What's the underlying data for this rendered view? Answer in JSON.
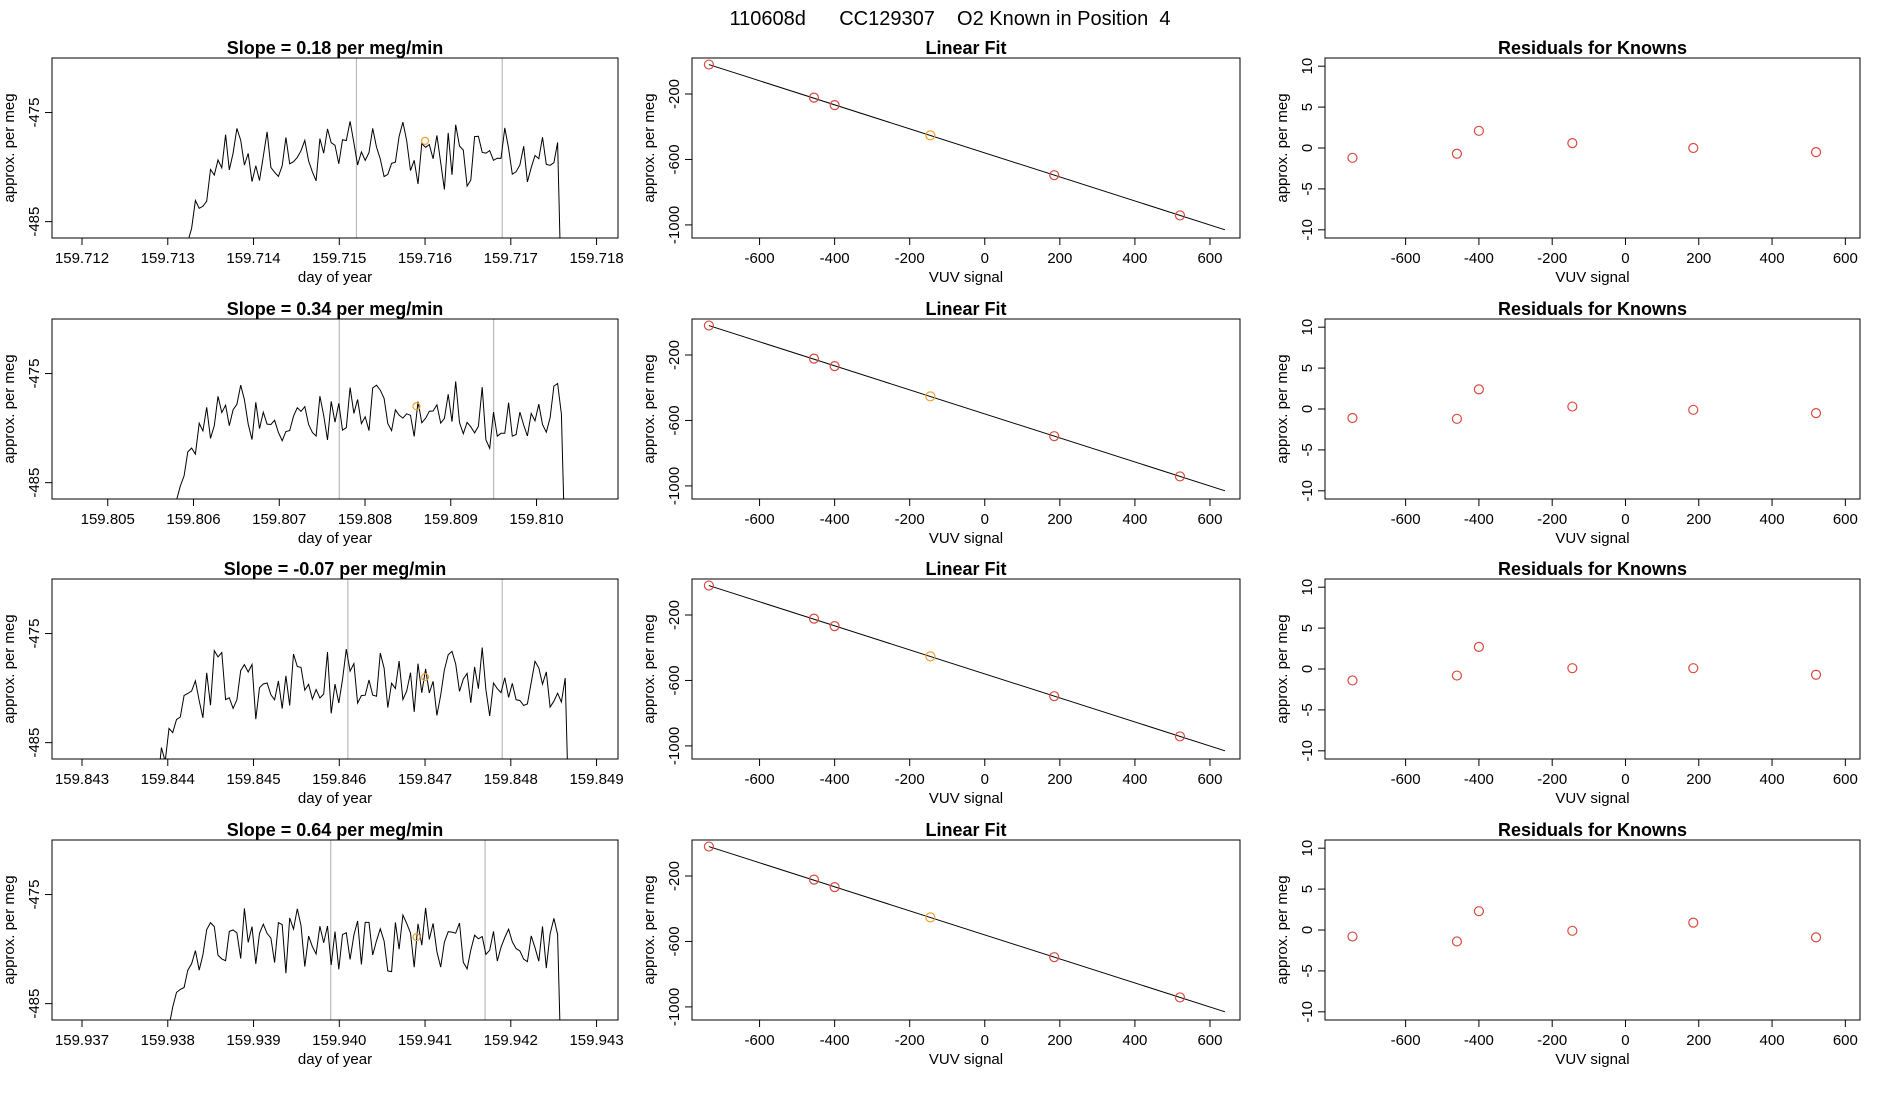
{
  "page_title": "110608d      CC129307    O2 Known in Position  4",
  "chart_data": [
    {
      "type": "line",
      "row": 1,
      "kind": "timeseries",
      "title": "Slope =  0.18  per meg/min",
      "xlabel": "day of year",
      "ylabel": "approx. per meg",
      "xlim": [
        159.71165,
        159.71825
      ],
      "ylim": [
        -486.5,
        -470
      ],
      "xticks": [
        159.712,
        159.713,
        159.714,
        159.715,
        159.716,
        159.717,
        159.718
      ],
      "xtick_labels": [
        "159.712",
        "159.713",
        "159.714",
        "159.715",
        "159.716",
        "159.717",
        "159.718"
      ],
      "yticks": [
        -475,
        -485
      ],
      "ytick_labels": [
        "-475",
        "-485"
      ],
      "vlines": [
        159.7152,
        159.7169
      ],
      "mean_point": {
        "x": 159.716,
        "y": -477.6
      },
      "start": 159.71315,
      "end": 159.71755,
      "base": -479,
      "amp": 2.6
    },
    {
      "type": "scatter",
      "row": 1,
      "kind": "fit",
      "title": "Linear Fit",
      "xlabel": "VUV signal",
      "ylabel": "approx. per meg",
      "xlim": [
        -780,
        680
      ],
      "ylim": [
        -1080,
        20
      ],
      "xticks": [
        -600,
        -400,
        -200,
        0,
        200,
        400,
        600
      ],
      "xtick_labels": [
        "-600",
        "-400",
        "-200",
        "0",
        "200",
        "400",
        "600"
      ],
      "yticks": [
        -200,
        -600,
        -1000
      ],
      "ytick_labels": [
        "-200",
        "-600",
        "-1000"
      ],
      "fit_line": {
        "x": [
          -735,
          640
        ],
        "y": [
          -20,
          -1030
        ]
      },
      "points": [
        {
          "x": -735,
          "y": -20,
          "color": "#d94a3d"
        },
        {
          "x": -455,
          "y": -222,
          "color": "#d94a3d"
        },
        {
          "x": -400,
          "y": -268,
          "color": "#d94a3d"
        },
        {
          "x": -145,
          "y": -453,
          "color": "#f0a030"
        },
        {
          "x": 185,
          "y": -696,
          "color": "#d94a3d"
        },
        {
          "x": 520,
          "y": -942,
          "color": "#d94a3d"
        }
      ]
    },
    {
      "type": "scatter",
      "row": 1,
      "kind": "residuals",
      "title": "Residuals for Knowns",
      "xlabel": "VUV signal",
      "ylabel": "approx. per meg",
      "xlim": [
        -820,
        640
      ],
      "ylim": [
        -11,
        11
      ],
      "xticks": [
        -600,
        -400,
        -200,
        0,
        200,
        400,
        600
      ],
      "xtick_labels": [
        "-600",
        "-400",
        "-200",
        "0",
        "200",
        "400",
        "600"
      ],
      "yticks": [
        10,
        5,
        0,
        -5,
        -10
      ],
      "ytick_labels": [
        "10",
        "5",
        "0",
        "-5",
        "-10"
      ],
      "points": [
        {
          "x": -745,
          "y": -1.2
        },
        {
          "x": -460,
          "y": -0.7
        },
        {
          "x": -400,
          "y": 2.1
        },
        {
          "x": -145,
          "y": 0.6
        },
        {
          "x": 185,
          "y": 0.0
        },
        {
          "x": 520,
          "y": -0.5
        }
      ]
    },
    {
      "type": "line",
      "row": 2,
      "kind": "timeseries",
      "title": "Slope =  0.34  per meg/min",
      "xlabel": "day of year",
      "ylabel": "approx. per meg",
      "xlim": [
        159.80435,
        159.81095
      ],
      "ylim": [
        -486.5,
        -470
      ],
      "xticks": [
        159.805,
        159.806,
        159.807,
        159.808,
        159.809,
        159.81
      ],
      "xtick_labels": [
        "159.805",
        "159.806",
        "159.807",
        "159.808",
        "159.809",
        "159.810"
      ],
      "yticks": [
        -475,
        -485
      ],
      "ytick_labels": [
        "-475",
        "-485"
      ],
      "vlines": [
        159.8077,
        159.8095
      ],
      "mean_point": {
        "x": 159.8086,
        "y": -478.0
      },
      "start": 159.8057,
      "end": 159.8103,
      "base": -479,
      "amp": 2.6
    },
    {
      "type": "scatter",
      "row": 2,
      "kind": "fit",
      "title": "Linear Fit",
      "xlabel": "VUV signal",
      "ylabel": "approx. per meg",
      "xlim": [
        -780,
        680
      ],
      "ylim": [
        -1080,
        20
      ],
      "xticks": [
        -600,
        -400,
        -200,
        0,
        200,
        400,
        600
      ],
      "xtick_labels": [
        "-600",
        "-400",
        "-200",
        "0",
        "200",
        "400",
        "600"
      ],
      "yticks": [
        -200,
        -600,
        -1000
      ],
      "ytick_labels": [
        "-200",
        "-600",
        "-1000"
      ],
      "fit_line": {
        "x": [
          -735,
          640
        ],
        "y": [
          -20,
          -1030
        ]
      },
      "points": [
        {
          "x": -735,
          "y": -20,
          "color": "#d94a3d"
        },
        {
          "x": -455,
          "y": -222,
          "color": "#d94a3d"
        },
        {
          "x": -400,
          "y": -268,
          "color": "#d94a3d"
        },
        {
          "x": -145,
          "y": -453,
          "color": "#f0a030"
        },
        {
          "x": 185,
          "y": -696,
          "color": "#d94a3d"
        },
        {
          "x": 520,
          "y": -942,
          "color": "#d94a3d"
        }
      ]
    },
    {
      "type": "scatter",
      "row": 2,
      "kind": "residuals",
      "title": "Residuals for Knowns",
      "xlabel": "VUV signal",
      "ylabel": "approx. per meg",
      "xlim": [
        -820,
        640
      ],
      "ylim": [
        -11,
        11
      ],
      "xticks": [
        -600,
        -400,
        -200,
        0,
        200,
        400,
        600
      ],
      "xtick_labels": [
        "-600",
        "-400",
        "-200",
        "0",
        "200",
        "400",
        "600"
      ],
      "yticks": [
        10,
        5,
        0,
        -5,
        -10
      ],
      "ytick_labels": [
        "10",
        "5",
        "0",
        "-5",
        "-10"
      ],
      "points": [
        {
          "x": -745,
          "y": -1.1
        },
        {
          "x": -460,
          "y": -1.2
        },
        {
          "x": -400,
          "y": 2.4
        },
        {
          "x": -145,
          "y": 0.3
        },
        {
          "x": 185,
          "y": -0.1
        },
        {
          "x": 520,
          "y": -0.5
        }
      ]
    },
    {
      "type": "line",
      "row": 3,
      "kind": "timeseries",
      "title": "Slope =  -0.07  per meg/min",
      "xlabel": "day of year",
      "ylabel": "approx. per meg",
      "xlim": [
        159.84265,
        159.84925
      ],
      "ylim": [
        -486.5,
        -470
      ],
      "xticks": [
        159.843,
        159.844,
        159.845,
        159.846,
        159.847,
        159.848,
        159.849
      ],
      "xtick_labels": [
        "159.843",
        "159.844",
        "159.845",
        "159.846",
        "159.847",
        "159.848",
        "159.849"
      ],
      "yticks": [
        -475,
        -485
      ],
      "ytick_labels": [
        "-475",
        "-485"
      ],
      "vlines": [
        159.8461,
        159.8479
      ],
      "mean_point": {
        "x": 159.847,
        "y": -479.0
      },
      "start": 159.84385,
      "end": 159.84865,
      "base": -479.5,
      "amp": 2.6
    },
    {
      "type": "scatter",
      "row": 3,
      "kind": "fit",
      "title": "Linear Fit",
      "xlabel": "VUV signal",
      "ylabel": "approx. per meg",
      "xlim": [
        -780,
        680
      ],
      "ylim": [
        -1080,
        20
      ],
      "xticks": [
        -600,
        -400,
        -200,
        0,
        200,
        400,
        600
      ],
      "xtick_labels": [
        "-600",
        "-400",
        "-200",
        "0",
        "200",
        "400",
        "600"
      ],
      "yticks": [
        -200,
        -600,
        -1000
      ],
      "ytick_labels": [
        "-200",
        "-600",
        "-1000"
      ],
      "fit_line": {
        "x": [
          -735,
          640
        ],
        "y": [
          -20,
          -1030
        ]
      },
      "points": [
        {
          "x": -735,
          "y": -20,
          "color": "#d94a3d"
        },
        {
          "x": -455,
          "y": -222,
          "color": "#d94a3d"
        },
        {
          "x": -400,
          "y": -268,
          "color": "#d94a3d"
        },
        {
          "x": -145,
          "y": -453,
          "color": "#f0a030"
        },
        {
          "x": 185,
          "y": -696,
          "color": "#d94a3d"
        },
        {
          "x": 520,
          "y": -942,
          "color": "#d94a3d"
        }
      ]
    },
    {
      "type": "scatter",
      "row": 3,
      "kind": "residuals",
      "title": "Residuals for Knowns",
      "xlabel": "VUV signal",
      "ylabel": "approx. per meg",
      "xlim": [
        -820,
        640
      ],
      "ylim": [
        -11,
        11
      ],
      "xticks": [
        -600,
        -400,
        -200,
        0,
        200,
        400,
        600
      ],
      "xtick_labels": [
        "-600",
        "-400",
        "-200",
        "0",
        "200",
        "400",
        "600"
      ],
      "yticks": [
        10,
        5,
        0,
        -5,
        -10
      ],
      "ytick_labels": [
        "10",
        "5",
        "0",
        "-5",
        "-10"
      ],
      "points": [
        {
          "x": -745,
          "y": -1.4
        },
        {
          "x": -460,
          "y": -0.8
        },
        {
          "x": -400,
          "y": 2.7
        },
        {
          "x": -145,
          "y": 0.1
        },
        {
          "x": 185,
          "y": 0.1
        },
        {
          "x": 520,
          "y": -0.7
        }
      ]
    },
    {
      "type": "line",
      "row": 4,
      "kind": "timeseries",
      "title": "Slope =  0.64  per meg/min",
      "xlabel": "day of year",
      "ylabel": "approx. per meg",
      "xlim": [
        159.93665,
        159.94325
      ],
      "ylim": [
        -486.5,
        -470
      ],
      "xticks": [
        159.937,
        159.938,
        159.939,
        159.94,
        159.941,
        159.942,
        159.943
      ],
      "xtick_labels": [
        "159.937",
        "159.938",
        "159.939",
        "159.940",
        "159.941",
        "159.942",
        "159.943"
      ],
      "yticks": [
        -475,
        -485
      ],
      "ytick_labels": [
        "-475",
        "-485"
      ],
      "vlines": [
        159.9399,
        159.9417
      ],
      "mean_point": {
        "x": 159.9409,
        "y": -478.9
      },
      "start": 159.9379,
      "end": 159.94255,
      "base": -479.3,
      "amp": 2.4
    },
    {
      "type": "scatter",
      "row": 4,
      "kind": "fit",
      "title": "Linear Fit",
      "xlabel": "VUV signal",
      "ylabel": "approx. per meg",
      "xlim": [
        -780,
        680
      ],
      "ylim": [
        -1080,
        20
      ],
      "xticks": [
        -600,
        -400,
        -200,
        0,
        200,
        400,
        600
      ],
      "xtick_labels": [
        "-600",
        "-400",
        "-200",
        "0",
        "200",
        "400",
        "600"
      ],
      "yticks": [
        -200,
        -600,
        -1000
      ],
      "ytick_labels": [
        "-200",
        "-600",
        "-1000"
      ],
      "fit_line": {
        "x": [
          -735,
          640
        ],
        "y": [
          -20,
          -1030
        ]
      },
      "points": [
        {
          "x": -735,
          "y": -20,
          "color": "#d94a3d"
        },
        {
          "x": -455,
          "y": -222,
          "color": "#d94a3d"
        },
        {
          "x": -400,
          "y": -268,
          "color": "#d94a3d"
        },
        {
          "x": -145,
          "y": -453,
          "color": "#f0a030"
        },
        {
          "x": 185,
          "y": -696,
          "color": "#d94a3d"
        },
        {
          "x": 520,
          "y": -942,
          "color": "#d94a3d"
        }
      ]
    },
    {
      "type": "scatter",
      "row": 4,
      "kind": "residuals",
      "title": "Residuals for Knowns",
      "xlabel": "VUV signal",
      "ylabel": "approx. per meg",
      "xlim": [
        -820,
        640
      ],
      "ylim": [
        -11,
        11
      ],
      "xticks": [
        -600,
        -400,
        -200,
        0,
        200,
        400,
        600
      ],
      "xtick_labels": [
        "-600",
        "-400",
        "-200",
        "0",
        "200",
        "400",
        "600"
      ],
      "yticks": [
        10,
        5,
        0,
        -5,
        -10
      ],
      "ytick_labels": [
        "10",
        "5",
        "0",
        "-5",
        "-10"
      ],
      "points": [
        {
          "x": -745,
          "y": -0.8
        },
        {
          "x": -460,
          "y": -1.4
        },
        {
          "x": -400,
          "y": 2.3
        },
        {
          "x": -145,
          "y": -0.1
        },
        {
          "x": 185,
          "y": 0.9
        },
        {
          "x": 520,
          "y": -0.9
        }
      ]
    }
  ],
  "colors": {
    "axis": "#000000",
    "vline": "#bbbbbb",
    "residual_point": "#d94a3d",
    "mean_point": "#f0a030"
  }
}
